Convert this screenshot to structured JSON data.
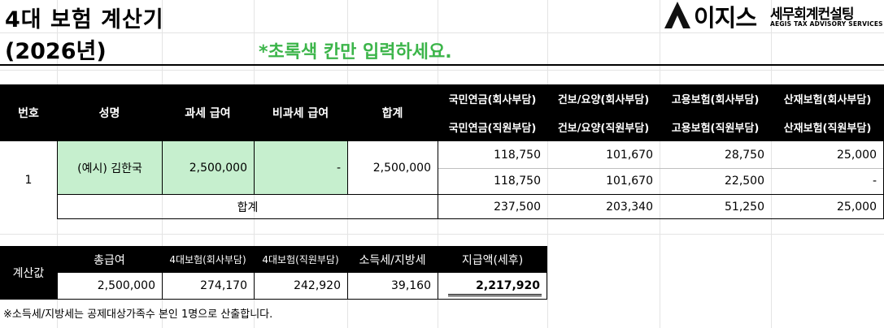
{
  "header": {
    "title_line1": "4대 보험 계산기",
    "title_line2": "(2026년)",
    "instruction": "*초록색 칸만 입력하세요."
  },
  "logo": {
    "brand": "이지스",
    "sub": "세무회계컨설팅",
    "english": "AEGIS TAX ADVISORY SERVICES"
  },
  "main_table": {
    "headers": {
      "no": "번호",
      "name": "성명",
      "taxable_pay": "과세 급여",
      "nontaxable_pay": "비과세 급여",
      "total": "합계",
      "pension_company": "국민연금(회사부담)",
      "health_company": "건보/요양(회사부담)",
      "employment_company": "고용보험(회사부담)",
      "accident_company": "산재보험(회사부담)",
      "pension_employee": "국민연금(직원부담)",
      "health_employee": "건보/요양(직원부담)",
      "employment_employee": "고용보험(직원부담)",
      "accident_employee": "산재보험(직원부담)"
    },
    "row": {
      "no": "1",
      "name": "(예시) 김한국",
      "taxable_pay": "2,500,000",
      "nontaxable_pay": "-",
      "total": "2,500,000",
      "company": [
        "118,750",
        "101,670",
        "28,750",
        "25,000"
      ],
      "employee": [
        "118,750",
        "101,670",
        "22,500",
        "-"
      ]
    },
    "sum_row": {
      "label": "합계",
      "values": [
        "237,500",
        "203,340",
        "51,250",
        "25,000"
      ]
    }
  },
  "summary_table": {
    "label": "계산값",
    "headers": [
      "총급여",
      "4대보험(회사부담)",
      "4대보험(직원부담)",
      "소득세/지방세",
      "지급액(세후)"
    ],
    "values": [
      "2,500,000",
      "274,170",
      "242,920",
      "39,160",
      "2,217,920"
    ]
  },
  "note": "※소득세/지방세는 공제대상가족수 본인 1명으로 산출합니다.",
  "colors": {
    "input_green": "#c6efce",
    "header_black": "#000000",
    "instruction_green": "#3cb54a"
  }
}
